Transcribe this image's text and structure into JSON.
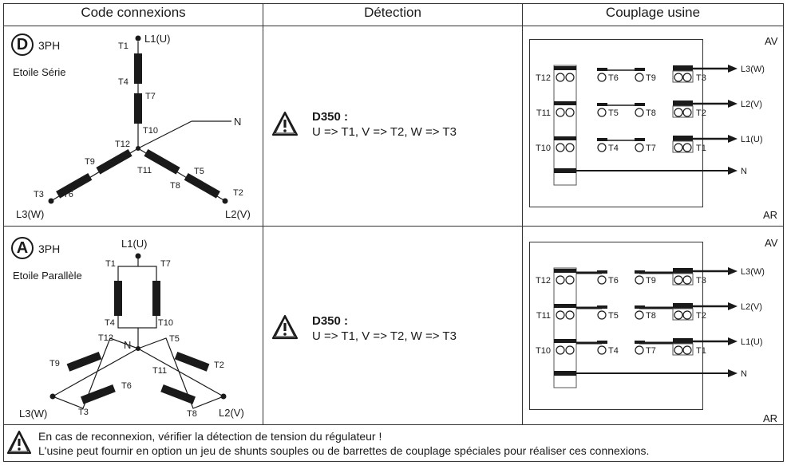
{
  "header": {
    "col1": "Code connexions",
    "col2": "Détection",
    "col3": "Couplage usine"
  },
  "rows": [
    {
      "code_letter": "D",
      "phase": "3PH",
      "connection_name": "Etoile Série",
      "schematic_labels": {
        "L1": "L1(U)",
        "L2": "L2(V)",
        "L3": "L3(W)",
        "N": "N",
        "T1": "T1",
        "T2": "T2",
        "T3": "T3",
        "T4": "T4",
        "T5": "T5",
        "T6": "T6",
        "T7": "T7",
        "T8": "T8",
        "T9": "T9",
        "T10": "T10",
        "T11": "T11",
        "T12": "T12"
      },
      "detection": {
        "title": "D350 :",
        "mapping": "U => T1, V => T2, W => T3"
      },
      "coupling": {
        "top_label": "AV",
        "bottom_label": "AR",
        "outputs": [
          "L3(W)",
          "L2(V)",
          "L1(U)",
          "N"
        ],
        "terminal_rows": [
          [
            "T12",
            "T6",
            "T9",
            "T3"
          ],
          [
            "T11",
            "T5",
            "T8",
            "T2"
          ],
          [
            "T10",
            "T4",
            "T7",
            "T1"
          ]
        ]
      }
    },
    {
      "code_letter": "A",
      "phase": "3PH",
      "connection_name": "Etoile Parallèle",
      "schematic_labels": {
        "L1": "L1(U)",
        "L2": "L2(V)",
        "L3": "L3(W)",
        "N": "N",
        "T1": "T1",
        "T2": "T2",
        "T3": "T3",
        "T4": "T4",
        "T5": "T5",
        "T6": "T6",
        "T7": "T7",
        "T8": "T8",
        "T9": "T9",
        "T10": "T10",
        "T11": "T11",
        "T12": "T12"
      },
      "detection": {
        "title": "D350 :",
        "mapping": "U => T1, V => T2, W => T3"
      },
      "coupling": {
        "top_label": "AV",
        "bottom_label": "AR",
        "outputs": [
          "L3(W)",
          "L2(V)",
          "L1(U)",
          "N"
        ],
        "terminal_rows": [
          [
            "T12",
            "T6",
            "T9",
            "T3"
          ],
          [
            "T11",
            "T5",
            "T8",
            "T2"
          ],
          [
            "T10",
            "T4",
            "T7",
            "T1"
          ]
        ]
      }
    }
  ],
  "footer": {
    "line1": "En cas de reconnexion, vérifier la détection de tension du régulateur !",
    "line2": "L'usine peut fournir en option un jeu de shunts souples ou de barrettes de couplage spéciales pour réaliser ces connexions."
  },
  "icons": [
    "warning-icon"
  ]
}
